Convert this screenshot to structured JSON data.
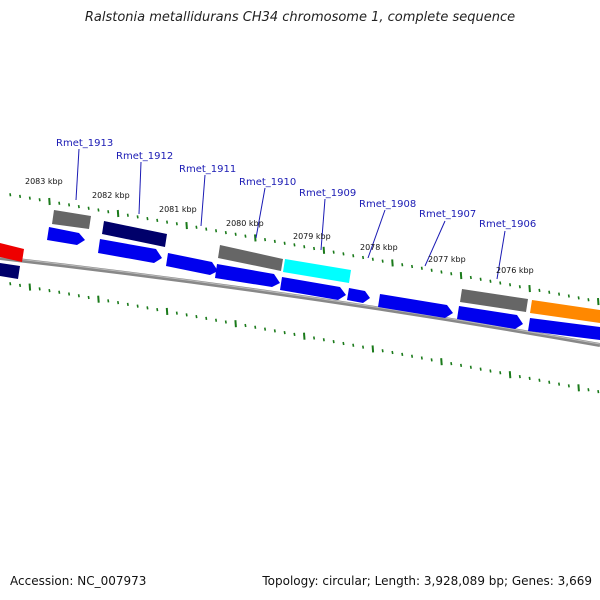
{
  "title": "Ralstonia metallidurans CH34 chromosome 1, complete sequence",
  "footer": {
    "accession": "Accession: NC_007973",
    "summary": "Topology: circular; Length: 3,928,089 bp; Genes: 3,669"
  },
  "gene_labels": [
    "Rmet_1913",
    "Rmet_1912",
    "Rmet_1911",
    "Rmet_1910",
    "Rmet_1909",
    "Rmet_1908",
    "Rmet_1907",
    "Rmet_1906"
  ],
  "kbp_labels": [
    "2083 kbp",
    "2082 kbp",
    "2081 kbp",
    "2080 kbp",
    "2079 kbp",
    "2078 kbp",
    "2077 kbp",
    "2076 kbp"
  ],
  "colors": {
    "backbone": "#808080",
    "forward_gene": "#0000ee",
    "reverse_gene_gray": "#606060",
    "reverse_gene_navy": "#00006a",
    "reverse_gene_cyan": "#00ffff",
    "reverse_gene_orange": "#ff8800",
    "reverse_gene_red": "#ee0000",
    "tick": "#1a7a1a",
    "label_line": "#1a1ab4"
  }
}
